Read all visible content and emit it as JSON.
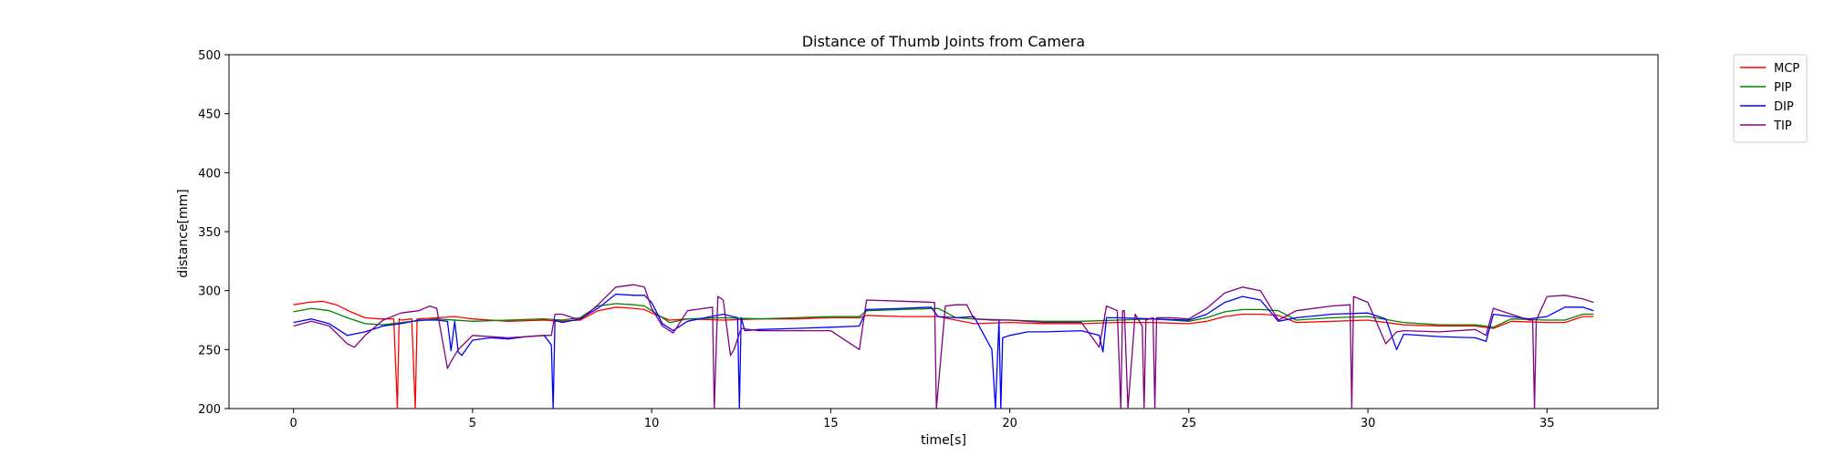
{
  "chart_data": {
    "type": "line",
    "title": "Distance of Thumb Joints from Camera",
    "xlabel": "time[s]",
    "ylabel": "distance[mm]",
    "xlim": [
      -1.8,
      38.1
    ],
    "ylim": [
      200,
      500
    ],
    "xticks": [
      0,
      5,
      10,
      15,
      20,
      25,
      30,
      35
    ],
    "yticks": [
      200,
      250,
      300,
      350,
      400,
      450,
      500
    ],
    "grid": false,
    "legend_position": "outside-top-right",
    "series": [
      {
        "name": "MCP",
        "color": "#ff0000",
        "x": [
          0,
          0.4,
          0.8,
          1.2,
          1.6,
          2.0,
          2.4,
          2.8,
          2.9,
          2.95,
          3.0,
          3.3,
          3.4,
          3.45,
          3.5,
          4.0,
          4.5,
          5.0,
          6.0,
          7.0,
          7.4,
          8.0,
          8.5,
          9.0,
          9.5,
          9.8,
          10.0,
          10.5,
          11.0,
          12.0,
          13.0,
          14.0,
          15.0,
          15.8,
          16.0,
          17.0,
          18.0,
          18.5,
          19.0,
          20.0,
          21.0,
          22.0,
          23.0,
          24.0,
          25.0,
          25.5,
          26.0,
          26.5,
          27.0,
          27.5,
          28.0,
          29.0,
          30.0,
          31.0,
          32.0,
          33.0,
          33.5,
          34.0,
          35.0,
          35.5,
          36.0,
          36.3
        ],
        "y": [
          288,
          290,
          291,
          288,
          282,
          277,
          276,
          276,
          200,
          276,
          275,
          276,
          200,
          276,
          276,
          277,
          278,
          276,
          274,
          275,
          274,
          275,
          283,
          286,
          285,
          284,
          281,
          275,
          276,
          275,
          276,
          276,
          277,
          277,
          279,
          278,
          278,
          275,
          272,
          273,
          272,
          272,
          273,
          273,
          272,
          274,
          278,
          280,
          280,
          279,
          273,
          274,
          275,
          271,
          270,
          270,
          268,
          274,
          273,
          273,
          278,
          278
        ]
      },
      {
        "name": "PIP",
        "color": "#008000",
        "x": [
          0,
          0.5,
          1.0,
          1.5,
          2.0,
          2.5,
          3.0,
          4.0,
          5.0,
          6.0,
          7.0,
          7.5,
          8.0,
          8.5,
          9.0,
          9.5,
          9.8,
          10.0,
          10.5,
          11.0,
          12.0,
          13.0,
          14.0,
          15.0,
          15.8,
          16.0,
          17.0,
          18.0,
          18.5,
          19.0,
          20.0,
          21.0,
          22.0,
          23.0,
          24.0,
          25.0,
          25.5,
          26.0,
          26.5,
          27.0,
          27.5,
          28.0,
          29.0,
          30.0,
          31.0,
          32.0,
          33.0,
          33.5,
          34.0,
          35.0,
          35.5,
          36.0,
          36.3
        ],
        "y": [
          282,
          285,
          283,
          277,
          272,
          271,
          273,
          276,
          274,
          275,
          276,
          275,
          277,
          287,
          289,
          288,
          287,
          283,
          273,
          276,
          277,
          276,
          277,
          278,
          278,
          283,
          284,
          285,
          277,
          276,
          275,
          274,
          274,
          275,
          276,
          274,
          277,
          282,
          284,
          284,
          283,
          275,
          277,
          278,
          273,
          271,
          271,
          269,
          276,
          275,
          275,
          280,
          280
        ]
      },
      {
        "name": "DIP",
        "color": "#0000ff",
        "x": [
          0,
          0.5,
          1.0,
          1.5,
          2.0,
          2.5,
          3.0,
          3.5,
          4.0,
          4.3,
          4.4,
          4.5,
          4.6,
          4.7,
          5.0,
          5.5,
          6.0,
          6.5,
          7.0,
          7.2,
          7.25,
          7.3,
          7.5,
          8.0,
          8.5,
          9.0,
          9.5,
          9.8,
          10.0,
          10.3,
          10.6,
          11.0,
          12.0,
          12.4,
          12.45,
          12.5,
          12.6,
          13.0,
          14.0,
          15.0,
          15.8,
          16.0,
          17.0,
          17.8,
          18.0,
          18.5,
          19.0,
          19.5,
          19.6,
          19.7,
          19.75,
          19.8,
          20.0,
          20.5,
          21.0,
          22.0,
          22.5,
          22.6,
          22.7,
          23.0,
          24.0,
          25.0,
          25.5,
          26.0,
          26.5,
          27.0,
          27.5,
          28.0,
          29.0,
          30.0,
          30.5,
          30.8,
          31.0,
          32.0,
          33.0,
          33.3,
          33.5,
          34.0,
          34.5,
          35.0,
          35.5,
          36.0,
          36.3
        ],
        "y": [
          273,
          276,
          272,
          262,
          265,
          270,
          272,
          275,
          275,
          274,
          249,
          274,
          248,
          245,
          258,
          260,
          259,
          261,
          262,
          254,
          200,
          275,
          273,
          276,
          285,
          297,
          296,
          296,
          290,
          272,
          266,
          274,
          280,
          277,
          200,
          277,
          266,
          267,
          268,
          269,
          270,
          284,
          285,
          286,
          278,
          277,
          278,
          250,
          200,
          275,
          200,
          260,
          262,
          265,
          265,
          266,
          262,
          248,
          277,
          277,
          276,
          275,
          280,
          290,
          295,
          292,
          274,
          277,
          280,
          281,
          276,
          250,
          263,
          261,
          260,
          257,
          280,
          278,
          276,
          278,
          286,
          286,
          283
        ]
      },
      {
        "name": "TIP",
        "color": "#800080",
        "x": [
          0,
          0.5,
          1.0,
          1.5,
          1.7,
          2.0,
          2.5,
          3.0,
          3.5,
          3.8,
          4.0,
          4.3,
          4.4,
          4.6,
          5.0,
          6.0,
          7.0,
          7.2,
          7.3,
          7.5,
          8.0,
          8.5,
          9.0,
          9.5,
          9.8,
          10.0,
          10.3,
          10.6,
          11.0,
          11.7,
          11.75,
          11.85,
          12.0,
          12.2,
          12.3,
          12.5,
          13.0,
          14.0,
          15.0,
          15.8,
          16.0,
          17.0,
          17.9,
          17.95,
          18.2,
          18.5,
          18.8,
          19.0,
          19.5,
          20.0,
          21.0,
          22.0,
          22.5,
          22.7,
          23.0,
          23.1,
          23.15,
          23.2,
          23.3,
          23.5,
          23.7,
          23.75,
          23.8,
          24.0,
          24.05,
          24.1,
          24.5,
          25.0,
          25.5,
          26.0,
          26.5,
          27.0,
          27.5,
          28.0,
          29.0,
          29.5,
          29.55,
          29.6,
          30.0,
          30.5,
          30.8,
          31.0,
          32.0,
          33.0,
          33.3,
          33.5,
          34.0,
          34.5,
          34.6,
          34.65,
          34.7,
          35.0,
          35.5,
          36.0,
          36.3
        ],
        "y": [
          270,
          274,
          270,
          255,
          252,
          262,
          275,
          281,
          283,
          287,
          285,
          234,
          240,
          250,
          262,
          260,
          262,
          262,
          280,
          280,
          275,
          288,
          303,
          305,
          303,
          285,
          270,
          264,
          283,
          286,
          200,
          295,
          292,
          245,
          250,
          268,
          266,
          266,
          266,
          250,
          292,
          291,
          290,
          200,
          287,
          288,
          288,
          276,
          275,
          275,
          273,
          273,
          252,
          287,
          283,
          200,
          283,
          283,
          200,
          280,
          270,
          200,
          275,
          277,
          200,
          277,
          277,
          276,
          285,
          298,
          303,
          300,
          275,
          283,
          287,
          288,
          200,
          295,
          290,
          255,
          265,
          266,
          265,
          267,
          262,
          285,
          280,
          275,
          275,
          200,
          275,
          295,
          296,
          293,
          290
        ]
      }
    ]
  }
}
